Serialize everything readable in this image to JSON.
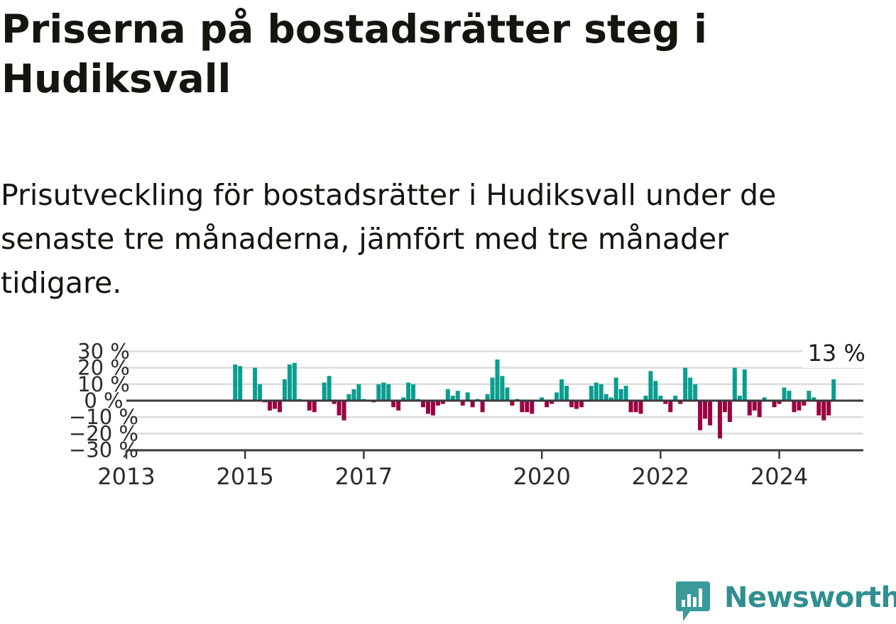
{
  "title": "Priserna på bostadsrätter steg i Hudiksvall",
  "subtitle": "Prisutveckling för bostadsrätter i Hudiksvall under de senaste tre månaderna, jämfört med tre månader tidigare.",
  "brand": {
    "name": "Newsworthy",
    "color": "#3a9a9a"
  },
  "colors": {
    "positive": "#0a9e8f",
    "negative": "#9b0040",
    "grid": "#dcdcdc",
    "axis": "#3a3a3a",
    "text": "#2b2b2b"
  },
  "chart_data": {
    "type": "bar",
    "ylabel_suffix": " %",
    "yticks": [
      30,
      20,
      10,
      0,
      -10,
      -20,
      -30
    ],
    "ytick_labels": [
      "30 %",
      "20 %",
      "10 %",
      "0 %",
      "−10 %",
      "−20 %",
      "−30 %"
    ],
    "ylim": [
      -30,
      30
    ],
    "xlim": [
      "2013-01",
      "2025-06"
    ],
    "xticks": [
      "2013",
      "2015",
      "2017",
      "2020",
      "2022",
      "2024"
    ],
    "last_value_label": "13 %",
    "grid": true,
    "values": [
      [
        "2014-11",
        22
      ],
      [
        "2014-12",
        21
      ],
      [
        "2015-03",
        20
      ],
      [
        "2015-04",
        10
      ],
      [
        "2015-05",
        -1
      ],
      [
        "2015-06",
        -6
      ],
      [
        "2015-07",
        -5
      ],
      [
        "2015-08",
        -7
      ],
      [
        "2015-09",
        13
      ],
      [
        "2015-10",
        22
      ],
      [
        "2015-11",
        23
      ],
      [
        "2015-12",
        1
      ],
      [
        "2016-02",
        -6
      ],
      [
        "2016-03",
        -7
      ],
      [
        "2016-05",
        11
      ],
      [
        "2016-06",
        15
      ],
      [
        "2016-07",
        -2
      ],
      [
        "2016-08",
        -9
      ],
      [
        "2016-09",
        -12
      ],
      [
        "2016-10",
        4
      ],
      [
        "2016-11",
        7
      ],
      [
        "2016-12",
        10
      ],
      [
        "2017-01",
        1
      ],
      [
        "2017-03",
        -1
      ],
      [
        "2017-04",
        10
      ],
      [
        "2017-05",
        11
      ],
      [
        "2017-06",
        10
      ],
      [
        "2017-07",
        -4
      ],
      [
        "2017-08",
        -6
      ],
      [
        "2017-09",
        2
      ],
      [
        "2017-10",
        11
      ],
      [
        "2017-11",
        10
      ],
      [
        "2017-12",
        1
      ],
      [
        "2018-01",
        -4
      ],
      [
        "2018-02",
        -8
      ],
      [
        "2018-03",
        -9
      ],
      [
        "2018-04",
        -3
      ],
      [
        "2018-05",
        -2
      ],
      [
        "2018-06",
        7
      ],
      [
        "2018-07",
        3
      ],
      [
        "2018-08",
        6
      ],
      [
        "2018-09",
        -3
      ],
      [
        "2018-10",
        5
      ],
      [
        "2018-11",
        -4
      ],
      [
        "2018-12",
        1
      ],
      [
        "2019-01",
        -7
      ],
      [
        "2019-02",
        4
      ],
      [
        "2019-03",
        14
      ],
      [
        "2019-04",
        25
      ],
      [
        "2019-05",
        15
      ],
      [
        "2019-06",
        8
      ],
      [
        "2019-07",
        -3
      ],
      [
        "2019-08",
        1
      ],
      [
        "2019-09",
        -7
      ],
      [
        "2019-10",
        -7
      ],
      [
        "2019-11",
        -8
      ],
      [
        "2020-01",
        2
      ],
      [
        "2020-02",
        -4
      ],
      [
        "2020-03",
        -2
      ],
      [
        "2020-04",
        5
      ],
      [
        "2020-05",
        13
      ],
      [
        "2020-06",
        9
      ],
      [
        "2020-07",
        -4
      ],
      [
        "2020-08",
        -5
      ],
      [
        "2020-09",
        -4
      ],
      [
        "2020-11",
        9
      ],
      [
        "2020-12",
        11
      ],
      [
        "2021-01",
        10
      ],
      [
        "2021-02",
        4
      ],
      [
        "2021-03",
        2
      ],
      [
        "2021-04",
        14
      ],
      [
        "2021-05",
        7
      ],
      [
        "2021-06",
        9
      ],
      [
        "2021-07",
        -7
      ],
      [
        "2021-08",
        -7
      ],
      [
        "2021-09",
        -8
      ],
      [
        "2021-10",
        3
      ],
      [
        "2021-11",
        18
      ],
      [
        "2021-12",
        12
      ],
      [
        "2022-01",
        3
      ],
      [
        "2022-02",
        -2
      ],
      [
        "2022-03",
        -7
      ],
      [
        "2022-04",
        3
      ],
      [
        "2022-05",
        -2
      ],
      [
        "2022-06",
        20
      ],
      [
        "2022-07",
        14
      ],
      [
        "2022-08",
        10
      ],
      [
        "2022-09",
        -18
      ],
      [
        "2022-10",
        -11
      ],
      [
        "2022-11",
        -15
      ],
      [
        "2023-01",
        -23
      ],
      [
        "2023-02",
        -7
      ],
      [
        "2023-03",
        -13
      ],
      [
        "2023-04",
        20
      ],
      [
        "2023-05",
        3
      ],
      [
        "2023-06",
        19
      ],
      [
        "2023-07",
        -9
      ],
      [
        "2023-08",
        -6
      ],
      [
        "2023-09",
        -10
      ],
      [
        "2023-10",
        2
      ],
      [
        "2023-12",
        -4
      ],
      [
        "2024-01",
        -2
      ],
      [
        "2024-02",
        8
      ],
      [
        "2024-03",
        6
      ],
      [
        "2024-04",
        -7
      ],
      [
        "2024-05",
        -6
      ],
      [
        "2024-06",
        -3
      ],
      [
        "2024-07",
        6
      ],
      [
        "2024-08",
        2
      ],
      [
        "2024-09",
        -9
      ],
      [
        "2024-10",
        -12
      ],
      [
        "2024-11",
        -9
      ],
      [
        "2024-12",
        13
      ]
    ]
  }
}
